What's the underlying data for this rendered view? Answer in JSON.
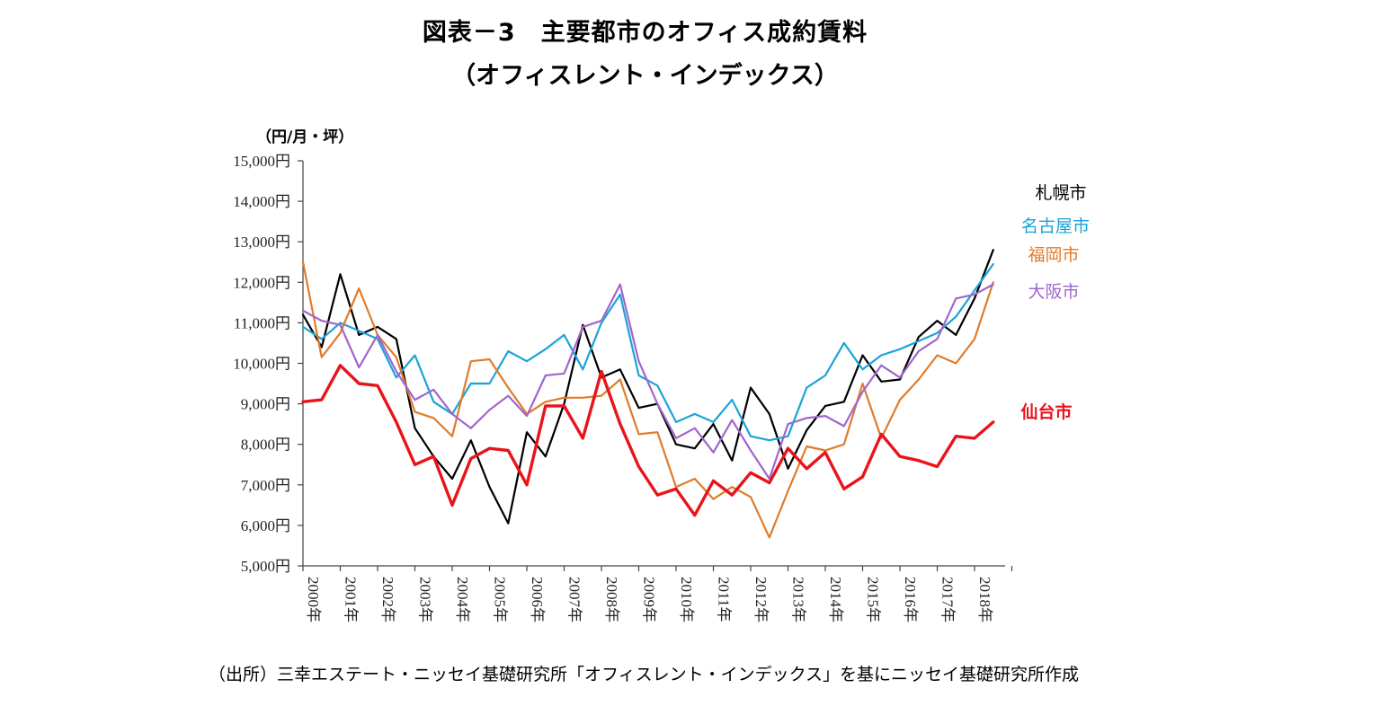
{
  "title_line1": "図表－3　主要都市のオフィス成約賃料",
  "title_line2": "（オフィスレント・インデックス）",
  "source": "（出所）三幸エステート・ニッセイ基礎研究所「オフィスレント・インデックス」を基にニッセイ基礎研究所作成",
  "chart_data": {
    "type": "line",
    "unit_label": "（円/月・坪）",
    "ylim": [
      5000,
      15000
    ],
    "y_ticks": [
      {
        "value": 5000,
        "label": "5,000円"
      },
      {
        "value": 6000,
        "label": "6,000円"
      },
      {
        "value": 7000,
        "label": "7,000円"
      },
      {
        "value": 8000,
        "label": "8,000円"
      },
      {
        "value": 9000,
        "label": "9,000円"
      },
      {
        "value": 10000,
        "label": "10,000円"
      },
      {
        "value": 11000,
        "label": "11,000円"
      },
      {
        "value": 12000,
        "label": "12,000円"
      },
      {
        "value": 13000,
        "label": "13,000円"
      },
      {
        "value": 14000,
        "label": "14,000円"
      },
      {
        "value": 15000,
        "label": "15,000円"
      }
    ],
    "x_labels": [
      "2000年",
      "2001年",
      "2002年",
      "2003年",
      "2004年",
      "2005年",
      "2006年",
      "2007年",
      "2008年",
      "2009年",
      "2010年",
      "2011年",
      "2012年",
      "2013年",
      "2014年",
      "2015年",
      "2016年",
      "2017年",
      "2018年"
    ],
    "periods_per_year": 2,
    "x_start": 2000.5,
    "series": [
      {
        "name": "札幌市",
        "color": "#000000",
        "width": 2.2,
        "values": [
          11200,
          10400,
          12200,
          10700,
          10900,
          10600,
          8400,
          7700,
          7150,
          8100,
          6950,
          6050,
          8300,
          7700,
          9000,
          10950,
          9650,
          9850,
          8900,
          9000,
          8000,
          7900,
          8500,
          7600,
          9400,
          8750,
          7400,
          8350,
          8950,
          9050,
          10200,
          9550,
          9600,
          10650,
          11050,
          10700,
          11600,
          12800
        ]
      },
      {
        "name": "名古屋市",
        "color": "#1aa3d9",
        "width": 2.2,
        "values": [
          10900,
          10600,
          11000,
          10800,
          10600,
          9650,
          10200,
          9050,
          8750,
          9500,
          9500,
          10300,
          10050,
          10350,
          10700,
          9850,
          11000,
          11700,
          9700,
          9450,
          8550,
          8750,
          8550,
          9100,
          8200,
          8100,
          8200,
          9400,
          9700,
          10500,
          9850,
          10200,
          10350,
          10550,
          10750,
          11150,
          11800,
          12450
        ]
      },
      {
        "name": "福岡市",
        "color": "#e07b2a",
        "width": 2.2,
        "values": [
          12500,
          10150,
          10750,
          11850,
          10700,
          10150,
          8800,
          8650,
          8200,
          10050,
          10100,
          9400,
          8750,
          9050,
          9150,
          9150,
          9200,
          9600,
          8250,
          8300,
          6950,
          7150,
          6650,
          6950,
          6700,
          5700,
          6850,
          7950,
          7850,
          8000,
          9500,
          8150,
          9100,
          9600,
          10200,
          10000,
          10600,
          12000
        ]
      },
      {
        "name": "大阪市",
        "color": "#a066cc",
        "width": 2.2,
        "values": [
          11300,
          11050,
          10950,
          9900,
          10700,
          9800,
          9100,
          9350,
          8750,
          8400,
          8850,
          9200,
          8700,
          9700,
          9750,
          10900,
          11050,
          11950,
          10050,
          9000,
          8150,
          8400,
          7800,
          8600,
          7850,
          7150,
          8500,
          8650,
          8700,
          8450,
          9300,
          9950,
          9650,
          10300,
          10600,
          11600,
          11700,
          11950
        ]
      },
      {
        "name": "仙台市",
        "color": "#e8141b",
        "width": 3.4,
        "values": [
          9050,
          9100,
          9950,
          9500,
          9450,
          8550,
          7500,
          7700,
          6500,
          7650,
          7900,
          7850,
          7000,
          8950,
          8950,
          8150,
          9800,
          8500,
          7450,
          6750,
          6900,
          6250,
          7100,
          6750,
          7300,
          7050,
          7900,
          7400,
          7800,
          6900,
          7200,
          8250,
          7700,
          7600,
          7450,
          8200,
          8150,
          8550
        ]
      }
    ]
  }
}
